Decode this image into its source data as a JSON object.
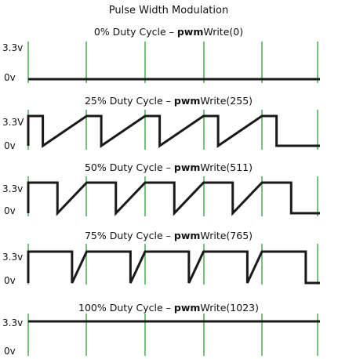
{
  "title": "Pulse Width Modulation",
  "panels": [
    {
      "caption_prefix": "0% Duty Cycle – ",
      "caption_bold": "pwm",
      "caption_suffix": "Write(0)",
      "high_label": "3.3v",
      "low_label": "0v",
      "duty": 0
    },
    {
      "caption_prefix": "25% Duty Cycle – ",
      "caption_bold": "pwm",
      "caption_suffix": "Write(255)",
      "high_label": "3.3V",
      "low_label": "0v",
      "duty": 0.25
    },
    {
      "caption_prefix": "50% Duty Cycle – ",
      "caption_bold": "pwm",
      "caption_suffix": "Write(511)",
      "high_label": "3.3v",
      "low_label": "0v",
      "duty": 0.5
    },
    {
      "caption_prefix": "75% Duty Cycle – ",
      "caption_bold": "pwm",
      "caption_suffix": "Write(765)",
      "high_label": "3.3v",
      "low_label": "0v",
      "duty": 0.75
    },
    {
      "caption_prefix": "100% Duty Cycle – ",
      "caption_bold": "pwm",
      "caption_suffix": "Write(1023)",
      "high_label": "3.3v",
      "low_label": "0v",
      "duty": 1
    }
  ],
  "periods": 5,
  "colors": {
    "grid": "#2e9e3c",
    "wave": "#1a1a1a"
  }
}
